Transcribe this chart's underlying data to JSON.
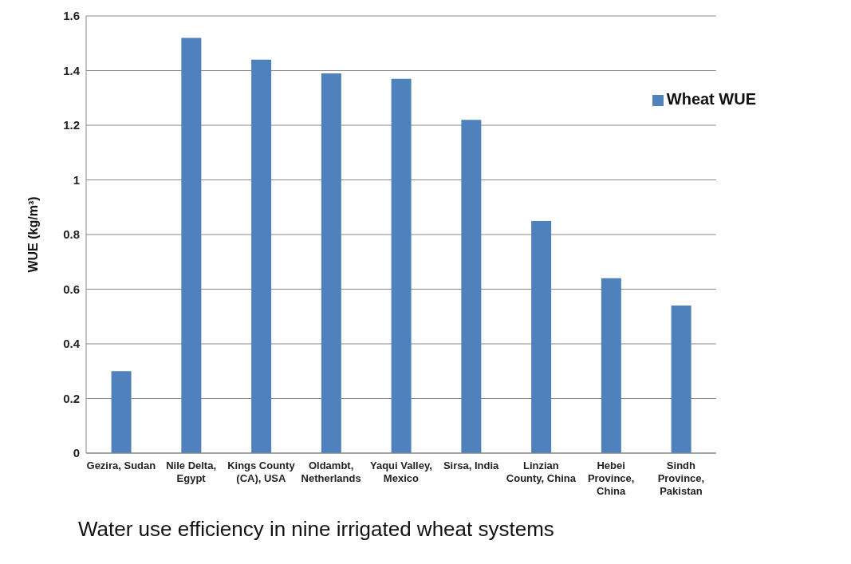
{
  "chart_data": {
    "type": "bar",
    "ylabel": "WUE (kg/m³)",
    "categories": [
      "Gezira, Sudan",
      "Nile Delta, Egypt",
      "Kings County (CA), USA",
      "Oldambt, Netherlands",
      "Yaqui Valley, Mexico",
      "Sirsa, India",
      "Linzian County, China",
      "Hebei Province, China",
      "Sindh Province, Pakistan"
    ],
    "series": [
      {
        "name": "Wheat WUE",
        "color": "#4f81bd",
        "values": [
          0.3,
          1.52,
          1.44,
          1.39,
          1.37,
          1.22,
          0.85,
          0.64,
          0.54
        ]
      }
    ],
    "ylim": [
      0,
      1.6
    ],
    "yticks": [
      0,
      0.2,
      0.4,
      0.6,
      0.8,
      1,
      1.2,
      1.4,
      1.6
    ],
    "grid": "y",
    "legend": "top right",
    "annotations": [
      "Water use efficiency in nine irrigated wheat systems"
    ]
  }
}
